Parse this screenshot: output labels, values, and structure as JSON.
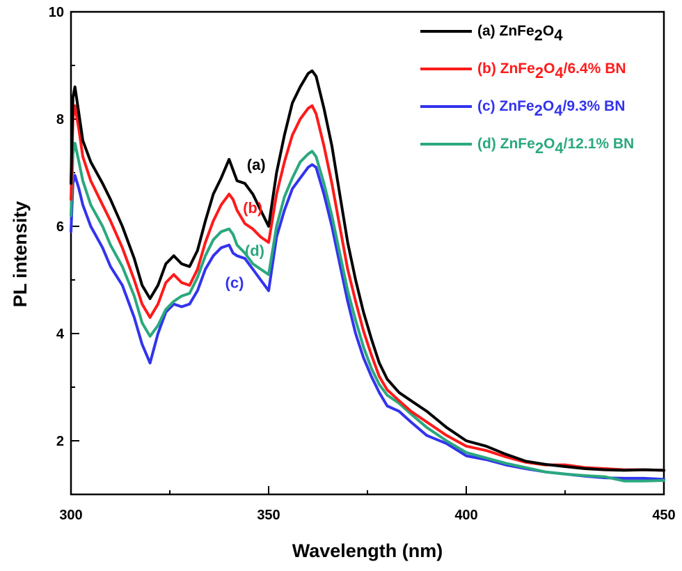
{
  "chart_data": {
    "type": "line",
    "xlabel": "Wavelength (nm)",
    "ylabel": "PL intensity",
    "xlim": [
      300,
      450
    ],
    "ylim": [
      1,
      10
    ],
    "xticks": [
      300,
      350,
      400,
      450
    ],
    "xtick_labels": [
      "300",
      "350",
      "400",
      "450"
    ],
    "yticks": [
      2,
      4,
      6,
      8,
      10
    ],
    "ytick_labels": [
      "2",
      "4",
      "6",
      "8",
      "10"
    ],
    "grid": false,
    "legend_position": "top-right",
    "series": [
      {
        "id": "a",
        "name": "(a) ZnFe2O4",
        "legend_parts": [
          {
            "t": "(a) ZnFe"
          },
          {
            "t": "2",
            "sub": true
          },
          {
            "t": "O"
          },
          {
            "t": "4",
            "sub": true
          }
        ],
        "color": "#000000",
        "x": [
          300,
          300.5,
          301,
          302,
          303,
          305,
          308,
          310,
          313,
          316,
          318,
          320,
          322,
          324,
          326,
          328,
          330,
          332,
          334,
          336,
          338,
          340,
          341,
          342,
          344,
          346,
          348,
          350,
          352,
          354,
          356,
          358,
          360,
          361,
          362,
          364,
          366,
          368,
          370,
          372,
          374,
          376,
          378,
          380,
          383,
          386,
          390,
          395,
          400,
          405,
          410,
          415,
          420,
          425,
          430,
          435,
          440,
          445,
          450
        ],
        "y": [
          6.8,
          8.4,
          8.6,
          8.1,
          7.6,
          7.2,
          6.8,
          6.5,
          6.0,
          5.4,
          4.9,
          4.65,
          4.9,
          5.3,
          5.45,
          5.3,
          5.25,
          5.55,
          6.1,
          6.6,
          6.9,
          7.25,
          7.05,
          6.85,
          6.8,
          6.6,
          6.3,
          6.0,
          7.0,
          7.7,
          8.3,
          8.6,
          8.85,
          8.9,
          8.8,
          8.2,
          7.5,
          6.6,
          5.7,
          5.0,
          4.4,
          3.9,
          3.45,
          3.15,
          2.9,
          2.75,
          2.55,
          2.25,
          2.0,
          1.9,
          1.75,
          1.62,
          1.56,
          1.52,
          1.48,
          1.46,
          1.45,
          1.46,
          1.45
        ]
      },
      {
        "id": "b",
        "name": "(b) ZnFe2O4/6.4% BN",
        "legend_parts": [
          {
            "t": "(b) ZnFe"
          },
          {
            "t": "2",
            "sub": true
          },
          {
            "t": "O"
          },
          {
            "t": "4",
            "sub": true
          },
          {
            "t": "/6.4% BN"
          }
        ],
        "color": "#ff1a1a",
        "x": [
          300,
          300.5,
          301,
          302,
          303,
          305,
          308,
          310,
          313,
          316,
          318,
          320,
          322,
          324,
          326,
          328,
          330,
          332,
          334,
          336,
          338,
          340,
          341,
          342,
          344,
          346,
          348,
          350,
          352,
          354,
          356,
          358,
          360,
          361,
          362,
          364,
          366,
          368,
          370,
          372,
          374,
          376,
          378,
          380,
          383,
          386,
          390,
          395,
          400,
          405,
          410,
          415,
          420,
          425,
          430,
          435,
          440,
          445,
          450
        ],
        "y": [
          6.5,
          8.0,
          8.25,
          7.8,
          7.3,
          6.85,
          6.4,
          6.1,
          5.6,
          5.0,
          4.55,
          4.3,
          4.55,
          4.95,
          5.1,
          4.95,
          4.9,
          5.2,
          5.7,
          6.1,
          6.4,
          6.6,
          6.5,
          6.3,
          6.05,
          5.95,
          5.8,
          5.7,
          6.6,
          7.2,
          7.7,
          8.0,
          8.2,
          8.25,
          8.1,
          7.5,
          6.8,
          6.0,
          5.2,
          4.6,
          4.05,
          3.6,
          3.2,
          2.95,
          2.75,
          2.55,
          2.35,
          2.1,
          1.9,
          1.82,
          1.7,
          1.6,
          1.55,
          1.55,
          1.5,
          1.48,
          1.46,
          1.46,
          1.45
        ]
      },
      {
        "id": "c",
        "name": "(c) ZnFe2O4/9.3% BN",
        "legend_parts": [
          {
            "t": "(c) ZnFe"
          },
          {
            "t": "2",
            "sub": true
          },
          {
            "t": "O"
          },
          {
            "t": "4",
            "sub": true
          },
          {
            "t": "/9.3% BN"
          }
        ],
        "color": "#3333ee",
        "x": [
          300,
          300.5,
          301,
          302,
          303,
          305,
          308,
          310,
          313,
          316,
          318,
          320,
          322,
          324,
          326,
          328,
          330,
          332,
          334,
          336,
          338,
          340,
          341,
          342,
          344,
          346,
          348,
          350,
          352,
          354,
          356,
          358,
          360,
          361,
          362,
          364,
          366,
          368,
          370,
          372,
          374,
          376,
          378,
          380,
          383,
          386,
          390,
          395,
          400,
          405,
          410,
          415,
          420,
          425,
          430,
          435,
          440,
          445,
          450
        ],
        "y": [
          5.9,
          6.8,
          6.95,
          6.7,
          6.4,
          6.0,
          5.6,
          5.25,
          4.9,
          4.3,
          3.8,
          3.45,
          4.0,
          4.4,
          4.55,
          4.5,
          4.55,
          4.8,
          5.2,
          5.45,
          5.6,
          5.65,
          5.5,
          5.45,
          5.4,
          5.2,
          5.0,
          4.8,
          5.8,
          6.3,
          6.7,
          6.9,
          7.1,
          7.15,
          7.1,
          6.6,
          6.0,
          5.3,
          4.6,
          4.0,
          3.55,
          3.2,
          2.9,
          2.65,
          2.55,
          2.35,
          2.1,
          1.95,
          1.72,
          1.65,
          1.55,
          1.48,
          1.42,
          1.38,
          1.34,
          1.31,
          1.3,
          1.3,
          1.28
        ]
      },
      {
        "id": "d",
        "name": "(d) ZnFe2O4/12.1% BN",
        "legend_parts": [
          {
            "t": "(d) ZnFe"
          },
          {
            "t": "2",
            "sub": true
          },
          {
            "t": "O"
          },
          {
            "t": "4",
            "sub": true
          },
          {
            "t": "/12.1% BN"
          }
        ],
        "color": "#2aa87e",
        "x": [
          300,
          300.5,
          301,
          302,
          303,
          305,
          308,
          310,
          313,
          316,
          318,
          320,
          322,
          324,
          326,
          328,
          330,
          332,
          334,
          336,
          338,
          340,
          341,
          342,
          344,
          346,
          348,
          350,
          352,
          354,
          356,
          358,
          360,
          361,
          362,
          364,
          366,
          368,
          370,
          372,
          374,
          376,
          378,
          380,
          383,
          386,
          390,
          395,
          400,
          405,
          410,
          415,
          420,
          425,
          430,
          435,
          440,
          445,
          450
        ],
        "y": [
          6.2,
          7.35,
          7.55,
          7.2,
          6.85,
          6.4,
          6.0,
          5.65,
          5.25,
          4.7,
          4.2,
          3.95,
          4.15,
          4.45,
          4.6,
          4.7,
          4.75,
          5.05,
          5.45,
          5.75,
          5.9,
          5.95,
          5.85,
          5.65,
          5.5,
          5.3,
          5.2,
          5.1,
          6.0,
          6.55,
          6.9,
          7.2,
          7.35,
          7.4,
          7.3,
          6.8,
          6.2,
          5.5,
          4.8,
          4.25,
          3.75,
          3.35,
          3.05,
          2.85,
          2.7,
          2.5,
          2.25,
          2.0,
          1.78,
          1.68,
          1.58,
          1.5,
          1.42,
          1.38,
          1.35,
          1.33,
          1.25,
          1.25,
          1.26
        ]
      }
    ],
    "annotations": [
      {
        "text": "(a)",
        "x": 344.5,
        "y": 7.05,
        "color": "#000000"
      },
      {
        "text": "(b)",
        "x": 343.5,
        "y": 6.25,
        "color": "#ff1a1a"
      },
      {
        "text": "(d)",
        "x": 344,
        "y": 5.45,
        "color": "#2aa87e"
      },
      {
        "text": "(c)",
        "x": 339,
        "y": 4.85,
        "color": "#3333ee"
      }
    ]
  }
}
